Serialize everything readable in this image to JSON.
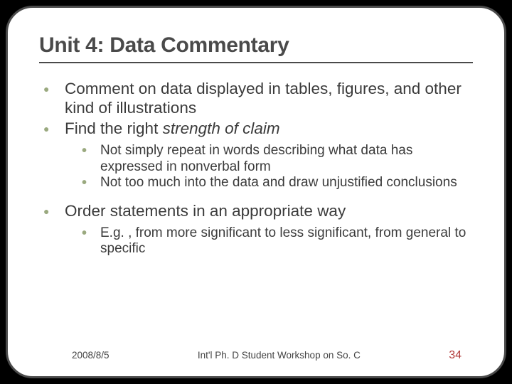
{
  "title": "Unit 4: Data Commentary",
  "bullets": {
    "b1": "Comment on data displayed in tables, figures, and other kind of illustrations",
    "b2_pre": "Find the right ",
    "b2_ital": "strength of claim",
    "b2_sub1": "Not simply repeat in words describing what data has expressed in nonverbal form",
    "b2_sub2": "Not too much into the data and draw unjustified conclusions",
    "b3": "Order statements in an appropriate way",
    "b3_sub1": "E.g. , from more significant to less significant, from general to specific"
  },
  "footer": {
    "date": "2008/8/5",
    "mid": "Int'l Ph. D Student Workshop on So. C",
    "page": "34"
  }
}
